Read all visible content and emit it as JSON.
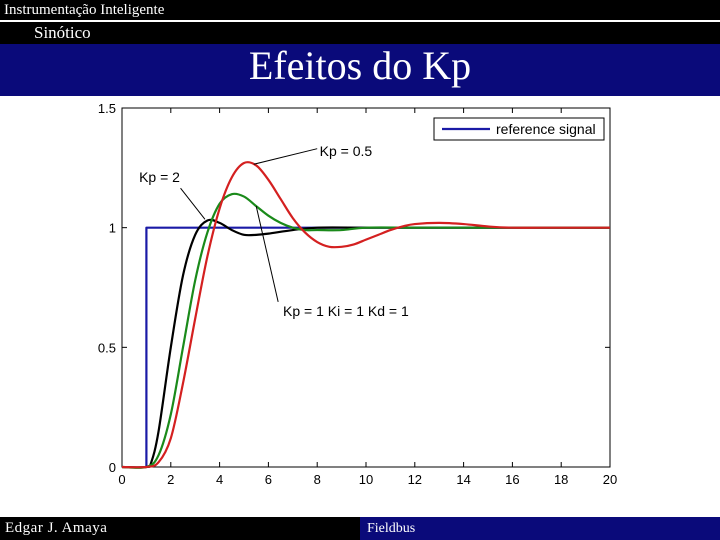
{
  "header": {
    "course": "Instrumentação Inteligente",
    "section": "Sinótico",
    "title": "Efeitos do Kp"
  },
  "footer": {
    "author": "Edgar J. Amaya",
    "topic": "Fieldbus"
  },
  "chart_data": {
    "type": "line",
    "xlim": [
      0,
      20
    ],
    "ylim": [
      0,
      1.5
    ],
    "x_ticks": [
      "0",
      "2",
      "4",
      "6",
      "8",
      "10",
      "12",
      "14",
      "16",
      "18",
      "20"
    ],
    "y_ticks": [
      "0",
      "0.5",
      "1",
      "1.5"
    ],
    "grid": false,
    "legend_position": "top-right",
    "legend": [
      "reference signal"
    ],
    "series": [
      {
        "name": "reference signal",
        "color": "#1a1aa6",
        "points": [
          [
            1,
            0
          ],
          [
            1,
            1
          ],
          [
            20,
            1
          ]
        ]
      },
      {
        "name": "Kp = 2",
        "color": "#000000",
        "points": [
          [
            0,
            0
          ],
          [
            1,
            0
          ],
          [
            1.2,
            0.02
          ],
          [
            1.5,
            0.15
          ],
          [
            2,
            0.5
          ],
          [
            2.5,
            0.8
          ],
          [
            3,
            0.97
          ],
          [
            3.5,
            1.03
          ],
          [
            4,
            1.02
          ],
          [
            4.5,
            0.99
          ],
          [
            5,
            0.97
          ],
          [
            5.5,
            0.97
          ],
          [
            6,
            0.975
          ],
          [
            7,
            0.99
          ],
          [
            8,
            1.0
          ],
          [
            10,
            1.0
          ],
          [
            12,
            1.0
          ],
          [
            14,
            1.0
          ],
          [
            16,
            1.0
          ],
          [
            18,
            1.0
          ],
          [
            20,
            1.0
          ]
        ]
      },
      {
        "name": "Kp = 1  Ki = 1  Kd = 1",
        "color": "#1a8a1a",
        "points": [
          [
            0,
            0
          ],
          [
            1,
            0
          ],
          [
            1.5,
            0.05
          ],
          [
            2,
            0.22
          ],
          [
            2.5,
            0.5
          ],
          [
            3,
            0.78
          ],
          [
            3.5,
            0.98
          ],
          [
            4,
            1.1
          ],
          [
            4.5,
            1.14
          ],
          [
            5,
            1.13
          ],
          [
            5.5,
            1.09
          ],
          [
            6,
            1.05
          ],
          [
            6.5,
            1.02
          ],
          [
            7,
            1.0
          ],
          [
            7.5,
            0.99
          ],
          [
            8,
            0.99
          ],
          [
            9,
            0.99
          ],
          [
            10,
            1.0
          ],
          [
            12,
            1.0
          ],
          [
            14,
            1.0
          ],
          [
            16,
            1.0
          ],
          [
            18,
            1.0
          ],
          [
            20,
            1.0
          ]
        ]
      },
      {
        "name": "Kp = 0.5",
        "color": "#d42020",
        "points": [
          [
            0,
            0
          ],
          [
            1,
            0
          ],
          [
            1.5,
            0.02
          ],
          [
            2,
            0.12
          ],
          [
            2.5,
            0.35
          ],
          [
            3,
            0.62
          ],
          [
            3.5,
            0.88
          ],
          [
            4,
            1.08
          ],
          [
            4.5,
            1.21
          ],
          [
            5,
            1.27
          ],
          [
            5.5,
            1.26
          ],
          [
            6,
            1.2
          ],
          [
            6.5,
            1.12
          ],
          [
            7,
            1.04
          ],
          [
            7.5,
            0.98
          ],
          [
            8,
            0.94
          ],
          [
            8.5,
            0.92
          ],
          [
            9,
            0.92
          ],
          [
            9.5,
            0.93
          ],
          [
            10,
            0.95
          ],
          [
            10.5,
            0.97
          ],
          [
            11,
            0.99
          ],
          [
            11.5,
            1.005
          ],
          [
            12,
            1.015
          ],
          [
            13,
            1.02
          ],
          [
            14,
            1.015
          ],
          [
            15,
            1.005
          ],
          [
            16,
            1.0
          ],
          [
            18,
            1.0
          ],
          [
            20,
            1.0
          ]
        ]
      }
    ],
    "annotations": [
      {
        "text": "Kp = 0.5",
        "at": [
          8.1,
          1.3
        ]
      },
      {
        "text": "Kp = 2",
        "at": [
          0.7,
          1.19
        ]
      },
      {
        "text": "Kp = 1  Ki = 1  Kd = 1",
        "at": [
          6.6,
          0.63
        ]
      }
    ]
  }
}
